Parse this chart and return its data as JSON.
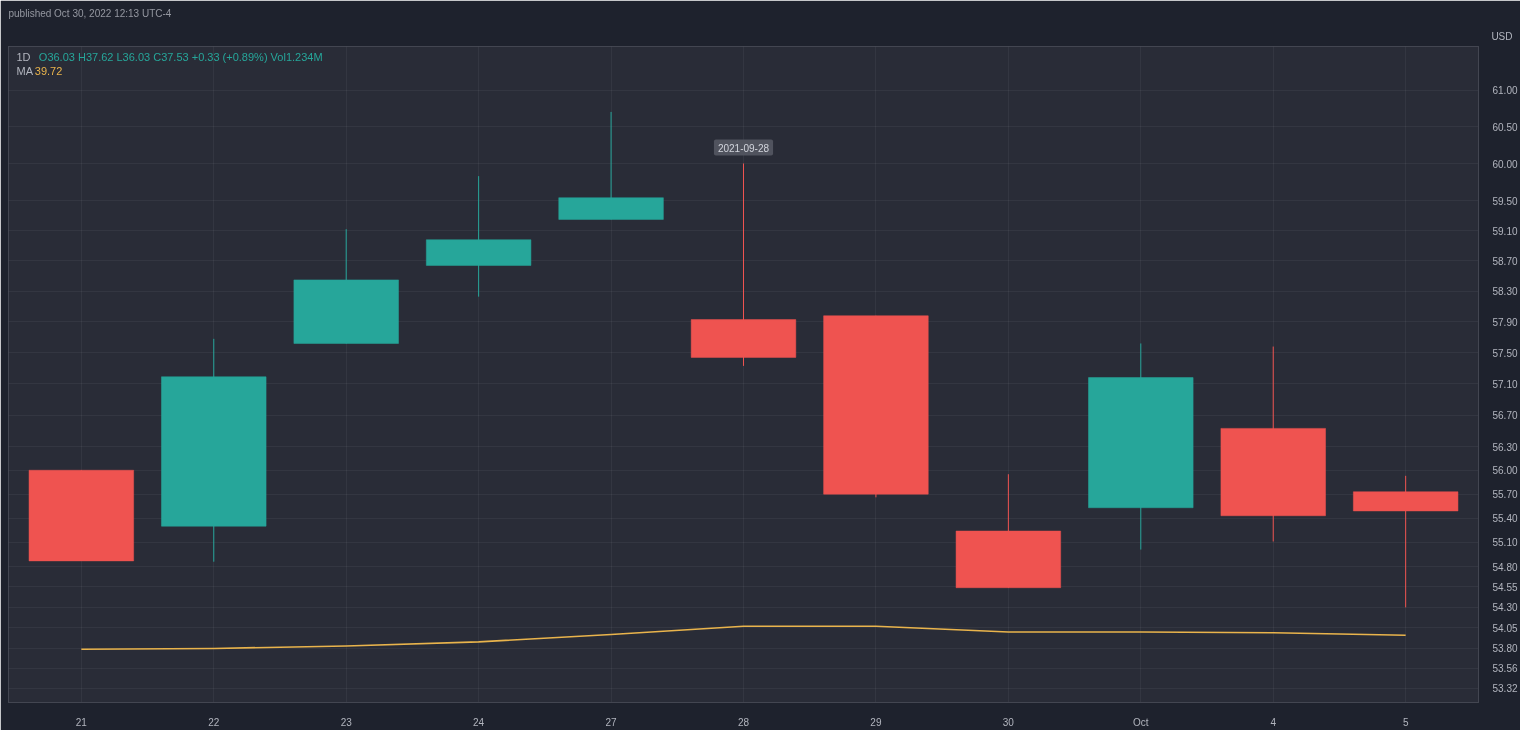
{
  "chart_data": {
    "type": "candlestick",
    "title": "1D",
    "ylabel": "USD",
    "categories": [
      "21",
      "22",
      "23",
      "24",
      "27",
      "28",
      "29",
      "30",
      "Oct",
      "4",
      "5"
    ],
    "series": [
      {
        "ohlc": [
          [
            56.0,
            56.0,
            54.87,
            54.87
          ],
          [
            55.3,
            57.68,
            54.86,
            57.19
          ],
          [
            57.62,
            59.12,
            57.62,
            58.45
          ],
          [
            58.64,
            59.83,
            58.23,
            58.98
          ],
          [
            59.25,
            60.7,
            59.25,
            59.54
          ],
          [
            57.93,
            60.0,
            57.33,
            57.44
          ],
          [
            57.98,
            57.98,
            55.66,
            55.7
          ],
          [
            55.24,
            55.95,
            54.54,
            54.54
          ],
          [
            55.53,
            57.62,
            55.01,
            57.18
          ],
          [
            56.53,
            57.58,
            55.11,
            55.43
          ],
          [
            55.73,
            55.93,
            54.3,
            55.49
          ]
        ],
        "colors": [
          "#ef5350",
          "#26a69a",
          "#26a69a",
          "#26a69a",
          "#26a69a",
          "#ef5350",
          "#ef5350",
          "#ef5350",
          "#26a69a",
          "#ef5350",
          "#ef5350"
        ]
      },
      {
        "type": "line",
        "name": "MA",
        "color": "#e9b44c",
        "values": [
          53.79,
          53.8,
          53.83,
          53.88,
          53.97,
          54.07,
          54.07,
          54.0,
          54.0,
          53.99,
          53.96
        ]
      }
    ],
    "log": true,
    "ylim": [
      53.15,
      61.6
    ],
    "yticks": [
      {
        "value": 61.0,
        "label": "61.00"
      },
      {
        "value": 60.5,
        "label": "60.50"
      },
      {
        "value": 60.0,
        "label": "60.00"
      },
      {
        "value": 59.5,
        "label": "59.50"
      },
      {
        "value": 59.1,
        "label": "59.10"
      },
      {
        "value": 58.7,
        "label": "58.70"
      },
      {
        "value": 58.3,
        "label": "58.30"
      },
      {
        "value": 57.9,
        "label": "57.90"
      },
      {
        "value": 57.5,
        "label": "57.50"
      },
      {
        "value": 57.1,
        "label": "57.10"
      },
      {
        "value": 56.7,
        "label": "56.70"
      },
      {
        "value": 56.3,
        "label": "56.30"
      },
      {
        "value": 56.0,
        "label": "56.00"
      },
      {
        "value": 55.7,
        "label": "55.70"
      },
      {
        "value": 55.4,
        "label": "55.40"
      },
      {
        "value": 55.1,
        "label": "55.10"
      },
      {
        "value": 54.8,
        "label": "54.80"
      },
      {
        "value": 54.55,
        "label": "54.55"
      },
      {
        "value": 54.3,
        "label": "54.30"
      },
      {
        "value": 54.05,
        "label": "54.05"
      },
      {
        "value": 53.8,
        "label": "53.80"
      },
      {
        "value": 53.56,
        "label": "53.56"
      },
      {
        "value": 53.32,
        "label": "53.32"
      }
    ],
    "grid": true,
    "legend": "top left",
    "annotations": [
      "published Oct 30, 2022 12:13 UTC-4",
      "O36.03 H37.62 L36.03 C37.53 +0.33 (+0.89%) Vol1.234M",
      "39.72",
      {
        "text": "2021-09-28",
        "x": "28",
        "y": 60.0
      }
    ]
  }
}
